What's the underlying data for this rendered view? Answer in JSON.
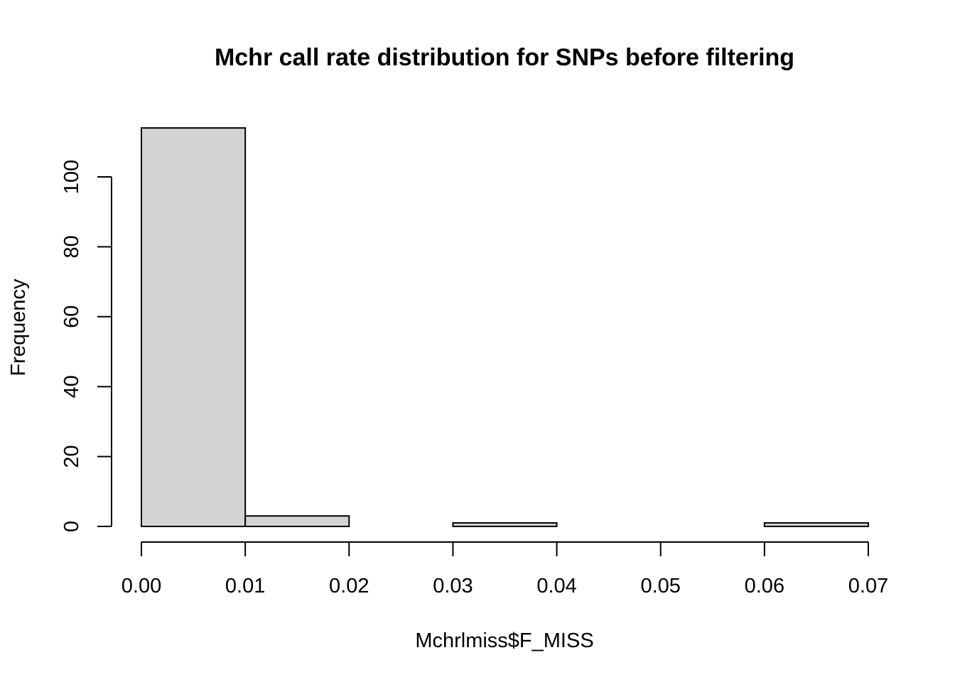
{
  "chart_data": {
    "type": "bar",
    "subtype": "histogram",
    "title": "Mchr call rate distribution for SNPs before filtering",
    "xlabel": "Mchrlmiss$F_MISS",
    "ylabel": "Frequency",
    "bins": [
      {
        "x0": 0.0,
        "x1": 0.01,
        "count": 114
      },
      {
        "x0": 0.01,
        "x1": 0.02,
        "count": 3
      },
      {
        "x0": 0.02,
        "x1": 0.03,
        "count": 0
      },
      {
        "x0": 0.03,
        "x1": 0.04,
        "count": 1
      },
      {
        "x0": 0.04,
        "x1": 0.05,
        "count": 0
      },
      {
        "x0": 0.05,
        "x1": 0.06,
        "count": 0
      },
      {
        "x0": 0.06,
        "x1": 0.07,
        "count": 1
      }
    ],
    "xlim": [
      0.0,
      0.07
    ],
    "ylim": [
      0,
      114
    ],
    "x_ticks": [
      "0.00",
      "0.01",
      "0.02",
      "0.03",
      "0.04",
      "0.05",
      "0.06",
      "0.07"
    ],
    "y_ticks": [
      "0",
      "20",
      "40",
      "60",
      "80",
      "100"
    ],
    "bar_color": "#d3d3d3",
    "edge_color": "#000000",
    "grid": false,
    "legend": "none"
  }
}
